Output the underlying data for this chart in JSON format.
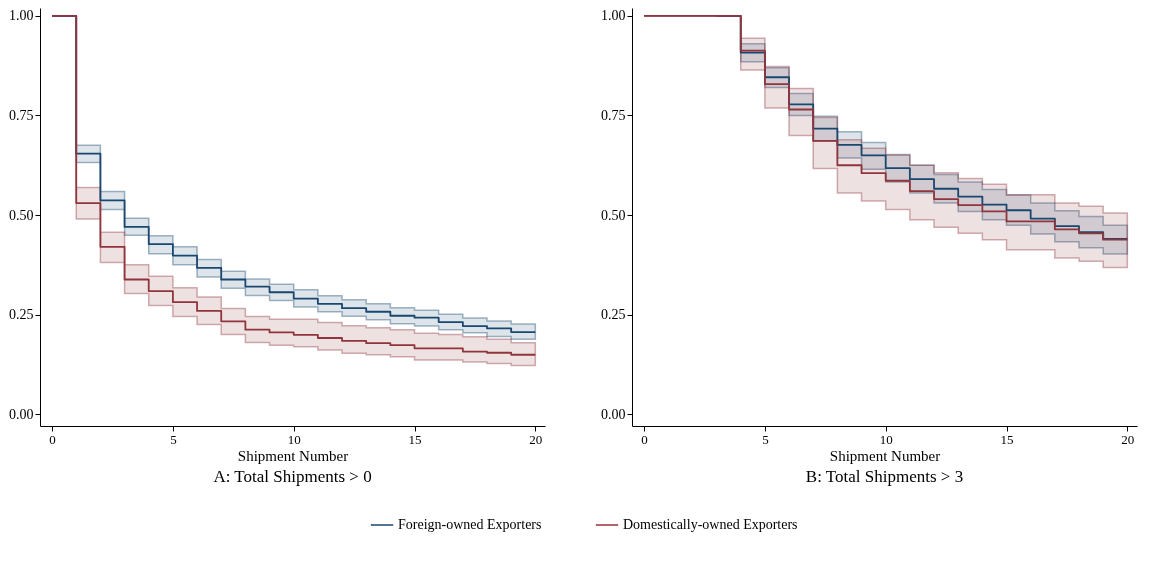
{
  "chart_data": [
    {
      "type": "step",
      "title": "A: Total Shipments > 0",
      "xlabel": "Shipment Number",
      "x": [
        0,
        1,
        2,
        3,
        4,
        5,
        6,
        7,
        8,
        9,
        10,
        11,
        12,
        13,
        14,
        15,
        16,
        17,
        18,
        19,
        20
      ],
      "series": [
        {
          "name": "Foreign-owned Exporters",
          "color": "#1a476f",
          "values": [
            1.0,
            0.654,
            0.537,
            0.47,
            0.427,
            0.398,
            0.367,
            0.338,
            0.32,
            0.306,
            0.29,
            0.277,
            0.266,
            0.257,
            0.247,
            0.242,
            0.231,
            0.221,
            0.215,
            0.206,
            0.206
          ],
          "lower": [
            1.0,
            0.632,
            0.514,
            0.449,
            0.403,
            0.375,
            0.344,
            0.316,
            0.298,
            0.285,
            0.269,
            0.257,
            0.246,
            0.237,
            0.227,
            0.221,
            0.212,
            0.204,
            0.195,
            0.188,
            0.188
          ],
          "upper": [
            1.0,
            0.675,
            0.559,
            0.492,
            0.448,
            0.42,
            0.388,
            0.359,
            0.339,
            0.326,
            0.312,
            0.297,
            0.287,
            0.277,
            0.267,
            0.261,
            0.251,
            0.241,
            0.234,
            0.226,
            0.226
          ]
        },
        {
          "name": "Domestically-owned Exporters",
          "color": "#90353b",
          "values": [
            1.0,
            0.53,
            0.42,
            0.338,
            0.309,
            0.281,
            0.259,
            0.233,
            0.212,
            0.205,
            0.199,
            0.191,
            0.184,
            0.178,
            0.173,
            0.165,
            0.165,
            0.157,
            0.154,
            0.149,
            0.149
          ],
          "lower": [
            1.0,
            0.49,
            0.381,
            0.303,
            0.273,
            0.245,
            0.225,
            0.2,
            0.18,
            0.173,
            0.169,
            0.161,
            0.153,
            0.149,
            0.144,
            0.136,
            0.136,
            0.131,
            0.127,
            0.122,
            0.122
          ],
          "upper": [
            1.0,
            0.569,
            0.457,
            0.375,
            0.346,
            0.317,
            0.294,
            0.265,
            0.245,
            0.238,
            0.238,
            0.23,
            0.222,
            0.217,
            0.212,
            0.203,
            0.2,
            0.194,
            0.188,
            0.179,
            0.179
          ]
        }
      ],
      "xlim": [
        -0.5,
        20.4
      ],
      "ylim": [
        -0.03,
        1.02
      ],
      "xticks": [
        0,
        5,
        10,
        15,
        20
      ],
      "yticks": [
        {
          "value": 0,
          "label": "0.00"
        },
        {
          "value": 0.25,
          "label": "0.25"
        },
        {
          "value": 0.5,
          "label": "0.50"
        },
        {
          "value": 0.75,
          "label": "0.75"
        },
        {
          "value": 1,
          "label": "1.00"
        }
      ],
      "grid": false,
      "legend": "bottom"
    },
    {
      "type": "step",
      "title": "B: Total Shipments > 3",
      "xlabel": "Shipment Number",
      "x": [
        0,
        1,
        2,
        3,
        4,
        5,
        6,
        7,
        8,
        9,
        10,
        11,
        12,
        13,
        14,
        15,
        16,
        17,
        18,
        19,
        20
      ],
      "series": [
        {
          "name": "Foreign-owned Exporters",
          "color": "#1a476f",
          "values": [
            null,
            null,
            null,
            1.0,
            0.908,
            0.846,
            0.778,
            0.717,
            0.676,
            0.65,
            0.618,
            0.59,
            0.566,
            0.546,
            0.526,
            0.512,
            0.491,
            0.472,
            0.457,
            0.44,
            0.44
          ],
          "lower": [
            1.0,
            1.0,
            1.0,
            1.0,
            0.885,
            0.82,
            0.75,
            0.686,
            0.643,
            0.615,
            0.583,
            0.555,
            0.53,
            0.509,
            0.488,
            0.474,
            0.452,
            0.433,
            0.418,
            0.402,
            0.402
          ],
          "upper": [
            1.0,
            1.0,
            1.0,
            1.0,
            0.93,
            0.87,
            0.805,
            0.748,
            0.709,
            0.682,
            0.652,
            0.625,
            0.602,
            0.583,
            0.564,
            0.55,
            0.53,
            0.511,
            0.496,
            0.474,
            0.474
          ]
        },
        {
          "name": "Domestically-owned Exporters",
          "color": "#90353b",
          "values": [
            1.0,
            1.0,
            1.0,
            1.0,
            0.913,
            0.829,
            0.765,
            0.686,
            0.625,
            0.605,
            0.586,
            0.56,
            0.54,
            0.525,
            0.509,
            0.484,
            0.484,
            0.464,
            0.454,
            0.438,
            0.438
          ],
          "lower": [
            1.0,
            1.0,
            1.0,
            1.0,
            0.864,
            0.769,
            0.7,
            0.617,
            0.555,
            0.535,
            0.514,
            0.488,
            0.469,
            0.454,
            0.438,
            0.413,
            0.413,
            0.392,
            0.384,
            0.368,
            0.368
          ],
          "upper": [
            1.0,
            1.0,
            1.0,
            1.0,
            0.944,
            0.873,
            0.818,
            0.745,
            0.689,
            0.668,
            0.65,
            0.625,
            0.606,
            0.592,
            0.577,
            0.551,
            0.551,
            0.53,
            0.522,
            0.505,
            0.505
          ]
        }
      ],
      "xlim": [
        -0.5,
        20.4
      ],
      "ylim": [
        -0.03,
        1.02
      ],
      "xticks": [
        0,
        5,
        10,
        15,
        20
      ],
      "yticks": [
        {
          "value": 0,
          "label": "0.00"
        },
        {
          "value": 0.25,
          "label": "0.25"
        },
        {
          "value": 0.5,
          "label": "0.50"
        },
        {
          "value": 0.75,
          "label": "0.75"
        },
        {
          "value": 1,
          "label": "1.00"
        }
      ],
      "grid": false,
      "legend": "bottom"
    }
  ]
}
